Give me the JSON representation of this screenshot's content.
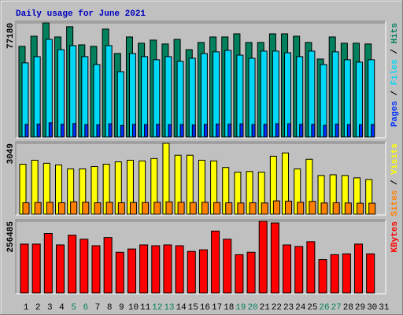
{
  "chart_data": [
    {
      "type": "bar",
      "title": "Daily usage for June 2021",
      "title_color": "#0000c0",
      "legend_separator": " / ",
      "ylim": [
        0,
        77180
      ],
      "yticks": [
        77180
      ],
      "series": [
        {
          "name": "Hits",
          "color": "#00805c",
          "values": [
            61400,
            68200,
            77180,
            67700,
            74600,
            62400,
            61400,
            73000,
            56600,
            67700,
            63500,
            65600,
            63000,
            66100,
            59200,
            64000,
            67700,
            67700,
            69800,
            64000,
            64000,
            69800,
            69800,
            68200,
            64000,
            52900,
            67700,
            63500,
            63500,
            63000,
            null
          ]
        },
        {
          "name": "Files",
          "color": "#00d8f8",
          "values": [
            50300,
            54500,
            66100,
            59200,
            61900,
            54500,
            49200,
            61900,
            44400,
            56600,
            54500,
            52400,
            54500,
            51300,
            53400,
            56600,
            57700,
            58700,
            55500,
            53400,
            58200,
            58200,
            57100,
            54500,
            58200,
            49200,
            57700,
            52400,
            50800,
            52400,
            null
          ]
        },
        {
          "name": "Pages",
          "color": "#0030ff",
          "values": [
            9000,
            9200,
            10100,
            9100,
            9600,
            8800,
            8700,
            9400,
            8300,
            9000,
            8900,
            9100,
            8800,
            8900,
            8600,
            9000,
            9300,
            9200,
            9400,
            8900,
            9000,
            9500,
            9400,
            9100,
            9000,
            8400,
            9200,
            8900,
            8800,
            8900,
            null
          ]
        }
      ]
    },
    {
      "type": "bar",
      "ylim": [
        0,
        3049
      ],
      "yticks": [
        3049
      ],
      "series": [
        {
          "name": "Visits",
          "color": "#ffff00",
          "values": [
            2160,
            2330,
            2200,
            2130,
            1960,
            1960,
            2060,
            2160,
            2260,
            2330,
            2300,
            2400,
            3049,
            2540,
            2540,
            2330,
            2300,
            2020,
            1820,
            1850,
            1820,
            2500,
            2640,
            1960,
            2370,
            1680,
            1710,
            1680,
            1580,
            1510,
            null
          ]
        },
        {
          "name": "Sites",
          "color": "#ff8000",
          "values": [
            520,
            530,
            540,
            520,
            560,
            540,
            520,
            540,
            520,
            530,
            530,
            540,
            560,
            540,
            530,
            540,
            530,
            520,
            510,
            520,
            510,
            600,
            590,
            540,
            580,
            510,
            520,
            510,
            500,
            500,
            null
          ]
        }
      ]
    },
    {
      "type": "bar",
      "ylim": [
        0,
        256485
      ],
      "yticks": [
        256485
      ],
      "categories": [
        "1",
        "2",
        "3",
        "4",
        "5",
        "6",
        "7",
        "8",
        "9",
        "10",
        "11",
        "12",
        "13",
        "14",
        "15",
        "16",
        "17",
        "18",
        "19",
        "20",
        "21",
        "22",
        "23",
        "24",
        "25",
        "26",
        "27",
        "28",
        "29",
        "30",
        "31"
      ],
      "category_colors": [
        "#000000",
        "#000000",
        "#000000",
        "#000000",
        "#00805c",
        "#00805c",
        "#000000",
        "#000000",
        "#000000",
        "#000000",
        "#000000",
        "#00805c",
        "#00805c",
        "#000000",
        "#000000",
        "#000000",
        "#000000",
        "#000000",
        "#00805c",
        "#00805c",
        "#000000",
        "#000000",
        "#000000",
        "#000000",
        "#000000",
        "#00805c",
        "#00805c",
        "#000000",
        "#000000",
        "#000000",
        "#000000"
      ],
      "series": [
        {
          "name": "KBytes",
          "color": "#ff0000",
          "values": [
            175800,
            175800,
            213300,
            172900,
            207500,
            193100,
            170000,
            198900,
            147000,
            158500,
            172900,
            170000,
            172900,
            170000,
            149900,
            155600,
            221900,
            193100,
            138300,
            147000,
            256485,
            250700,
            172900,
            167200,
            184400,
            121000,
            138300,
            141200,
            175800,
            141200,
            null
          ]
        }
      ]
    }
  ]
}
